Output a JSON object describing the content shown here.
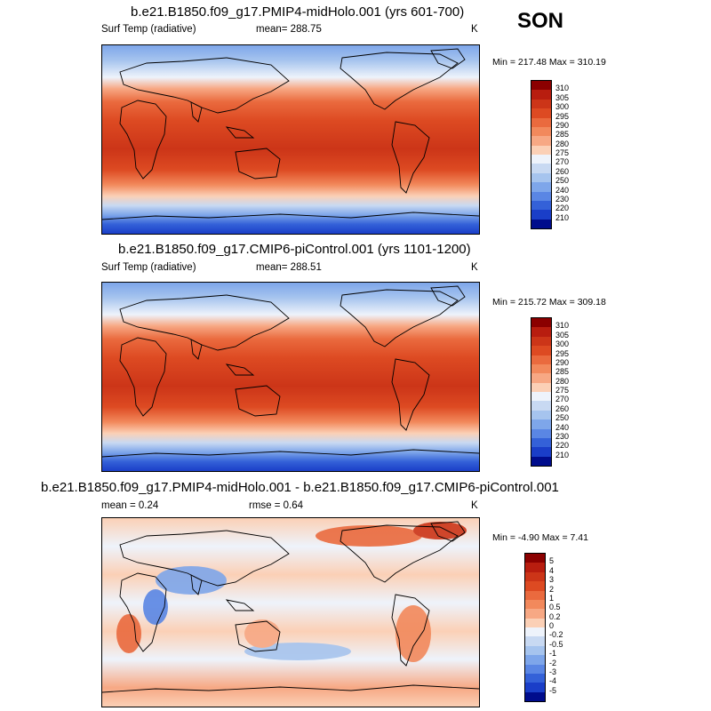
{
  "season": "SON",
  "panels": [
    {
      "title": "b.e21.B1850.f09_g17.PMIP4-midHolo.001 (yrs 601-700)",
      "left_label": "Surf Temp (radiative)",
      "center_label": "mean= 288.75",
      "units": "K",
      "minmax": "Min = 217.48 Max = 310.19",
      "levels": [
        "310",
        "305",
        "300",
        "295",
        "290",
        "285",
        "280",
        "275",
        "270",
        "260",
        "250",
        "240",
        "230",
        "220",
        "210"
      ],
      "colors": [
        "#8b0000",
        "#b81d0f",
        "#cc3518",
        "#dd4a22",
        "#ea6a3e",
        "#f2895c",
        "#f7a884",
        "#fbd0b6",
        "#eef3fb",
        "#c8d9f2",
        "#a6c4ee",
        "#7ea6ea",
        "#5a86e4",
        "#3461d8",
        "#1a3ec8",
        "#000c8c"
      ]
    },
    {
      "title": "b.e21.B1850.f09_g17.CMIP6-piControl.001 (yrs 1101-1200)",
      "left_label": "Surf Temp (radiative)",
      "center_label": "mean= 288.51",
      "units": "K",
      "minmax": "Min = 215.72 Max = 309.18",
      "levels": [
        "310",
        "305",
        "300",
        "295",
        "290",
        "285",
        "280",
        "275",
        "270",
        "260",
        "250",
        "240",
        "230",
        "220",
        "210"
      ],
      "colors": [
        "#8b0000",
        "#b81d0f",
        "#cc3518",
        "#dd4a22",
        "#ea6a3e",
        "#f2895c",
        "#f7a884",
        "#fbd0b6",
        "#eef3fb",
        "#c8d9f2",
        "#a6c4ee",
        "#7ea6ea",
        "#5a86e4",
        "#3461d8",
        "#1a3ec8",
        "#000c8c"
      ]
    },
    {
      "title": "b.e21.B1850.f09_g17.PMIP4-midHolo.001 - b.e21.B1850.f09_g17.CMIP6-piControl.001",
      "left_label": "mean =   0.24",
      "center_label": "rmse =   0.64",
      "units": "K",
      "minmax": "Min =  -4.90 Max =   7.41",
      "levels": [
        "5",
        "4",
        "3",
        "2",
        "1",
        "0.5",
        "0.2",
        "0",
        "-0.2",
        "-0.5",
        "-1",
        "-2",
        "-3",
        "-4",
        "-5"
      ],
      "colors": [
        "#8b0000",
        "#b81d0f",
        "#cc3518",
        "#dd4a22",
        "#ea6a3e",
        "#f2895c",
        "#f7a884",
        "#fbd0b6",
        "#eef3fb",
        "#c8d9f2",
        "#a6c4ee",
        "#7ea6ea",
        "#5a86e4",
        "#3461d8",
        "#1a3ec8",
        "#000c8c"
      ]
    }
  ]
}
